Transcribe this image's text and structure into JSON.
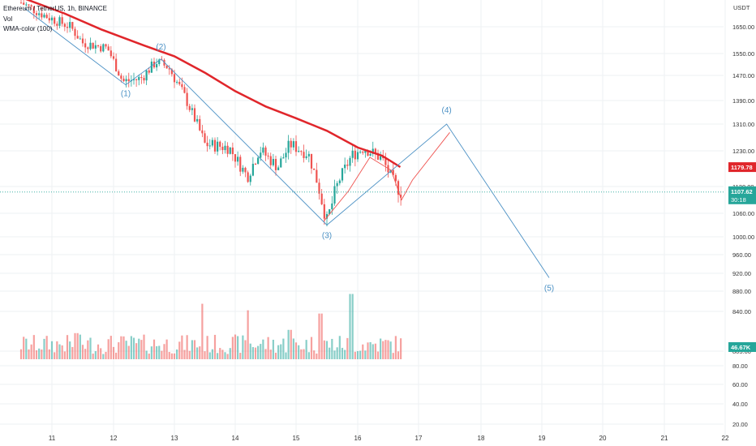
{
  "header": {
    "symbol_line": "Ethereum / TetherUS, 1h, BINANCE",
    "vol_label": "Vol",
    "wma_label": "WMA-color (100)"
  },
  "colors": {
    "up": "#26a69a",
    "down": "#ef5350",
    "wma": "#e0262b",
    "wave": "#4a90c4",
    "projection": "#ef5350",
    "price_line": "#26a69a",
    "grid": "#eef0f3",
    "background": "#ffffff"
  },
  "chart_data": {
    "type": "candlestick",
    "price_axis": {
      "unit_label": "USDT",
      "ticks": [
        "1650.00",
        "1550.00",
        "1470.00",
        "1390.00",
        "1310.00",
        "1230.00",
        "1120.00",
        "1060.00",
        "1000.00",
        "960.00",
        "920.00",
        "880.00",
        "840.00",
        "805.00"
      ]
    },
    "volume_axis": {
      "ticks": [
        "80.00",
        "60.00",
        "40.00",
        "20.00"
      ]
    },
    "x_axis": {
      "ticks": [
        "11",
        "12",
        "13",
        "14",
        "15",
        "16",
        "17",
        "18",
        "19",
        "20",
        "21",
        "22"
      ]
    },
    "badges": {
      "wma_value": "1179.78",
      "last_price": "1107.62",
      "countdown": "30:18",
      "volume": "46.67K"
    },
    "wave_labels": [
      "(1)",
      "(2)",
      "(3)",
      "(4)",
      "(5)"
    ],
    "wave_path": [
      {
        "day": 10.55,
        "price": 1720
      },
      {
        "day": 12.2,
        "price": 1440
      },
      {
        "day": 12.78,
        "price": 1530
      },
      {
        "day": 15.5,
        "price": 1030
      },
      {
        "day": 17.45,
        "price": 1310
      },
      {
        "day": 19.12,
        "price": 910
      }
    ],
    "projection_path": [
      {
        "day": 15.45,
        "price": 1040
      },
      {
        "day": 15.85,
        "price": 1110
      },
      {
        "day": 16.2,
        "price": 1210
      },
      {
        "day": 16.55,
        "price": 1170
      },
      {
        "day": 16.72,
        "price": 1090
      },
      {
        "day": 16.9,
        "price": 1140
      },
      {
        "day": 17.5,
        "price": 1285
      }
    ],
    "wma_path": [
      {
        "day": 10.5,
        "price": 1760
      },
      {
        "day": 11.2,
        "price": 1700
      },
      {
        "day": 11.8,
        "price": 1640
      },
      {
        "day": 12.5,
        "price": 1580
      },
      {
        "day": 13.0,
        "price": 1540
      },
      {
        "day": 13.5,
        "price": 1480
      },
      {
        "day": 14.0,
        "price": 1420
      },
      {
        "day": 14.5,
        "price": 1370
      },
      {
        "day": 15.0,
        "price": 1330
      },
      {
        "day": 15.5,
        "price": 1290
      },
      {
        "day": 16.0,
        "price": 1240
      },
      {
        "day": 16.4,
        "price": 1215
      },
      {
        "day": 16.7,
        "price": 1180
      }
    ],
    "price_waypoints": [
      {
        "day": 10.5,
        "price": 1740
      },
      {
        "day": 10.9,
        "price": 1690
      },
      {
        "day": 11.3,
        "price": 1650
      },
      {
        "day": 11.5,
        "price": 1590
      },
      {
        "day": 11.9,
        "price": 1570
      },
      {
        "day": 12.15,
        "price": 1450
      },
      {
        "day": 12.45,
        "price": 1460
      },
      {
        "day": 12.7,
        "price": 1520
      },
      {
        "day": 12.9,
        "price": 1500
      },
      {
        "day": 13.2,
        "price": 1390
      },
      {
        "day": 13.5,
        "price": 1250
      },
      {
        "day": 13.9,
        "price": 1240
      },
      {
        "day": 14.2,
        "price": 1150
      },
      {
        "day": 14.4,
        "price": 1235
      },
      {
        "day": 14.7,
        "price": 1180
      },
      {
        "day": 14.9,
        "price": 1250
      },
      {
        "day": 15.2,
        "price": 1220
      },
      {
        "day": 15.5,
        "price": 1040
      },
      {
        "day": 15.7,
        "price": 1140
      },
      {
        "day": 15.9,
        "price": 1215
      },
      {
        "day": 16.1,
        "price": 1240
      },
      {
        "day": 16.4,
        "price": 1205
      },
      {
        "day": 16.6,
        "price": 1130
      },
      {
        "day": 16.72,
        "price": 1108
      }
    ],
    "volume_spikes": [
      {
        "day": 13.45,
        "value": 0.85
      },
      {
        "day": 14.2,
        "value": 0.75
      },
      {
        "day": 15.4,
        "value": 0.7
      },
      {
        "day": 15.9,
        "value": 1.0
      },
      {
        "day": 14.9,
        "value": 0.45
      },
      {
        "day": 11.4,
        "value": 0.4
      }
    ]
  }
}
